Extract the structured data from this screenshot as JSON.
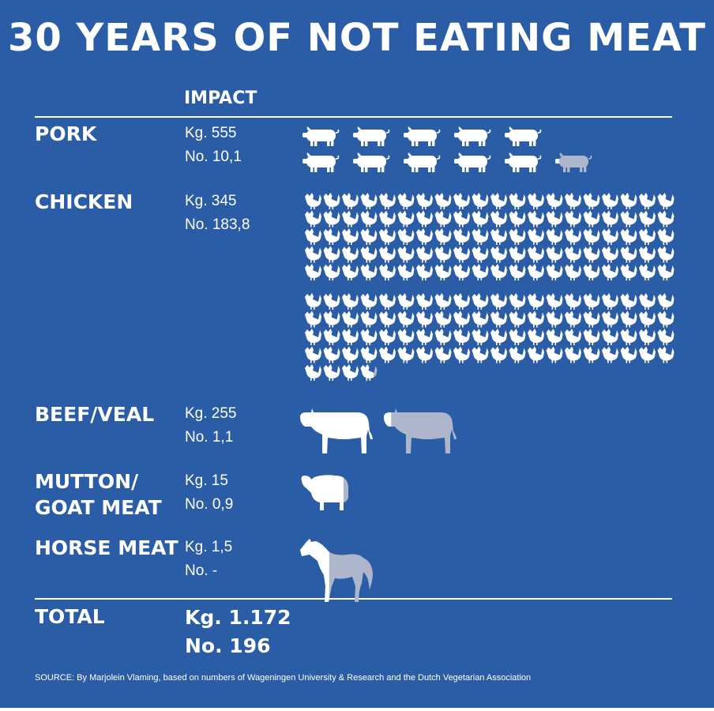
{
  "title": "30 YEARS OF NOT EATING MEAT",
  "column_header": "IMPACT",
  "colors": {
    "background": "#2b5da6",
    "full_animal": "#ffffff",
    "partial_animal": "#aeb6cc"
  },
  "icon_names": {
    "pork": "pig-icon",
    "chicken": "chicken-icon",
    "beef": "cow-icon",
    "mutton": "sheep-icon",
    "horse": "horse-icon"
  },
  "chart_data": {
    "type": "table",
    "rows": [
      {
        "category": "PORK",
        "kg_label": "Kg. 555",
        "no_label": "No. 10,1",
        "count": 10.1
      },
      {
        "category": "CHICKEN",
        "kg_label": "Kg. 345",
        "no_label": "No. 183,8",
        "count": 183.8
      },
      {
        "category": "BEEF/VEAL",
        "kg_label": "Kg. 255",
        "no_label": "No. 1,1",
        "count": 1.1
      },
      {
        "category": "MUTTON/ GOAT MEAT",
        "category_lines": [
          "MUTTON/",
          "GOAT MEAT"
        ],
        "kg_label": "Kg. 15",
        "no_label": "No. 0,9",
        "count": 0.9
      },
      {
        "category": "HORSE MEAT",
        "kg_label": "Kg. 1,5",
        "no_label": "No. -",
        "count": 0.4
      }
    ],
    "total": {
      "label": "TOTAL",
      "kg_label": "Kg. 1.172",
      "no_label": "No. 196"
    }
  },
  "source": "SOURCE: By Marjolein Vlaming, based on numbers of Wageningen University & Research and the Dutch Vegetarian Association"
}
